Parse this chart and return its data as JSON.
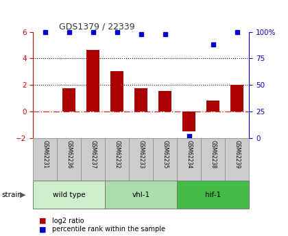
{
  "title": "GDS1379 / 22339",
  "samples": [
    "GSM62231",
    "GSM62236",
    "GSM62237",
    "GSM62232",
    "GSM62233",
    "GSM62235",
    "GSM62234",
    "GSM62238",
    "GSM62239"
  ],
  "log2_ratio": [
    0.0,
    1.75,
    4.62,
    3.05,
    1.75,
    1.55,
    -1.5,
    0.85,
    2.02
  ],
  "percentile_rank": [
    100,
    100,
    100,
    100,
    98,
    98,
    2,
    88,
    100
  ],
  "bar_color": "#AA0000",
  "dot_color": "#0000CC",
  "ylim_left": [
    -2.0,
    6.0
  ],
  "ylim_right": [
    0,
    100
  ],
  "yticks_left": [
    -2,
    0,
    2,
    4,
    6
  ],
  "yticks_right": [
    0,
    25,
    50,
    75,
    100
  ],
  "yticklabels_right": [
    "0",
    "25",
    "50",
    "75",
    "100%"
  ],
  "dotted_lines": [
    2.0,
    4.0
  ],
  "groups": [
    {
      "label": "wild type",
      "start": 0,
      "end": 3,
      "color": "#CCEECC"
    },
    {
      "label": "vhl-1",
      "start": 3,
      "end": 6,
      "color": "#AADDAA"
    },
    {
      "label": "hif-1",
      "start": 6,
      "end": 9,
      "color": "#44BB44"
    }
  ],
  "strain_label": "strain",
  "legend_red": "log2 ratio",
  "legend_blue": "percentile rank within the sample",
  "label_area_color": "#CCCCCC",
  "zero_line_color": "#CC3333",
  "grid_color": "#000000",
  "bar_width": 0.55
}
